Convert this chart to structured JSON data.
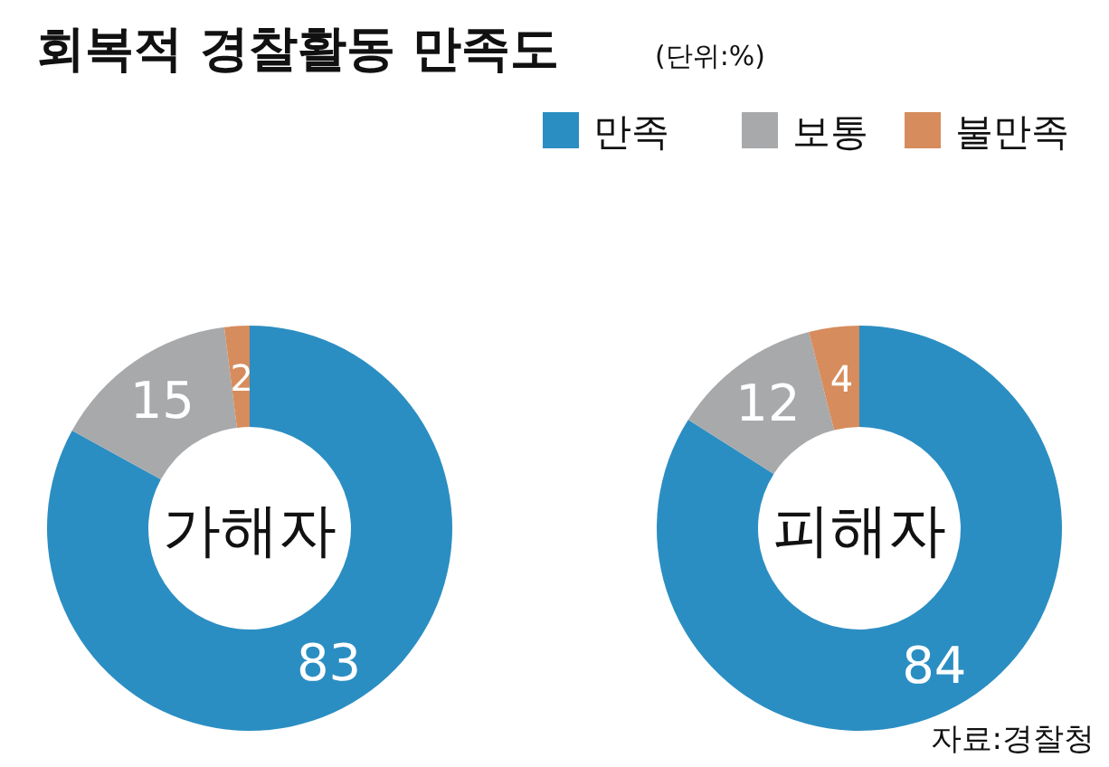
{
  "chart_data": [
    {
      "type": "donut",
      "title": "회복적 경찰활동 만족도",
      "annotations": [
        "가해자"
      ],
      "categories": [
        "만족",
        "보통",
        "불만족"
      ],
      "values": [
        83,
        15,
        2
      ],
      "colors": [
        "#2b8ec2",
        "#a8a9ab",
        "#d68c5c"
      ],
      "data_labels": true,
      "legend": "top right"
    },
    {
      "type": "donut",
      "subtitle": "(단위:%)",
      "annotations": [
        "피해자",
        "자료:경찰청"
      ],
      "categories": [
        null,
        null,
        null
      ],
      "values": [
        84,
        12,
        4
      ],
      "colors": [
        "#2b8ec2",
        "#a8a9ab",
        "#d68c5c"
      ],
      "data_labels": true
    }
  ]
}
